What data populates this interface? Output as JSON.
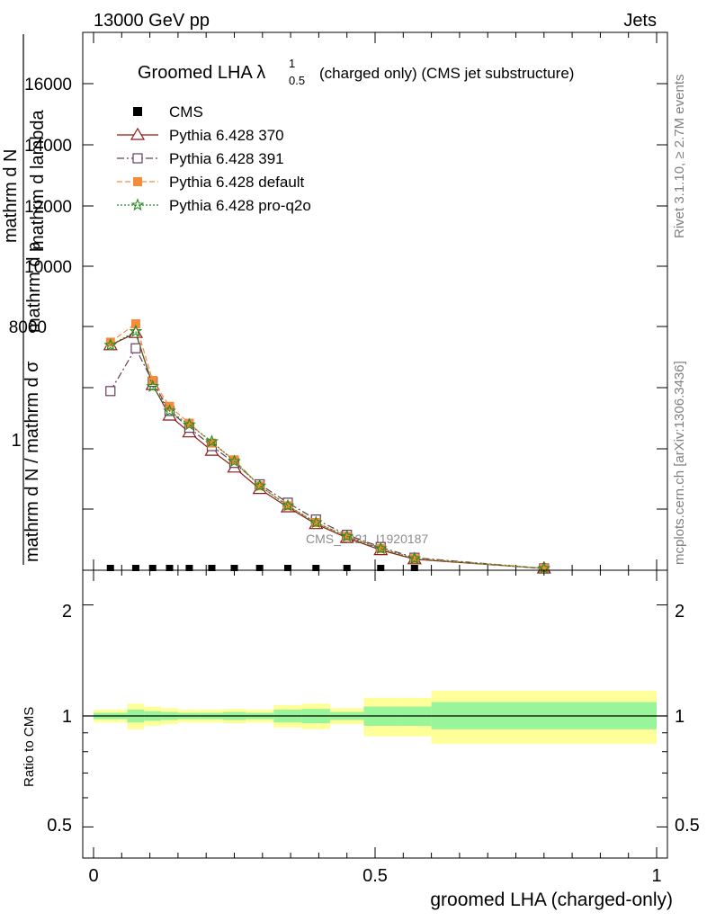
{
  "header": {
    "left": "13000 GeV pp",
    "right": "Jets"
  },
  "side_labels": {
    "rivet": "Rivet 3.1.10, ≥ 2.7M events",
    "mcplots": "mcplots.cern.ch [arXiv:1306.3436]"
  },
  "watermark": "CMS_2021_I1920187",
  "chart_data": [
    {
      "type": "line",
      "title": "Groomed LHA λ",
      "title_sup": "1",
      "title_sub": "0.5",
      "title_rest": "(charged only) (CMS jet substructure)",
      "ylabel_lines": [
        "mathrm d N / mathrm d σ",
        "mathrm d p",
        "mathrm d lambda",
        "mathrm d N"
      ],
      "ylabel_fraction_one": "1",
      "xlabel": "",
      "y_ticks_upper": [
        "16000",
        "14000",
        "12000",
        "10000",
        "8000"
      ],
      "legend_placement": "top-left",
      "x": [
        0.03,
        0.075,
        0.105,
        0.135,
        0.17,
        0.21,
        0.25,
        0.295,
        0.345,
        0.395,
        0.45,
        0.51,
        0.57,
        0.8
      ],
      "series": [
        {
          "name": "CMS",
          "color": "#000000",
          "marker": "square-filled",
          "values": [
            0,
            0,
            0,
            0,
            0,
            0,
            0,
            0,
            0,
            0,
            0,
            0,
            0,
            0
          ]
        },
        {
          "name": "Pythia 6.428 370",
          "color": "#8b1a1a",
          "marker": "triangle-open",
          "dash": "",
          "values": [
            7.3,
            7.7,
            6.0,
            5.0,
            4.45,
            3.85,
            3.3,
            2.6,
            2.0,
            1.45,
            1.0,
            0.6,
            0.3,
            0.0
          ]
        },
        {
          "name": "Pythia 6.428 391",
          "color": "#6b3a5a",
          "marker": "square-open",
          "dash": "8,3,2,3",
          "values": [
            5.8,
            7.2,
            6.1,
            5.15,
            4.6,
            4.0,
            3.45,
            2.75,
            2.15,
            1.6,
            1.1,
            0.7,
            0.35,
            0.0
          ]
        },
        {
          "name": "Pythia 6.428 default",
          "color": "#f58c3c",
          "marker": "square-filled",
          "dash": "6,3",
          "values": [
            7.4,
            8.0,
            6.15,
            5.3,
            4.75,
            4.1,
            3.55,
            2.7,
            2.05,
            1.5,
            1.05,
            0.65,
            0.32,
            0.0
          ]
        },
        {
          "name": "Pythia 6.428 pro-q2o",
          "color": "#1e8c1e",
          "marker": "star",
          "dash": "2,2",
          "values": [
            7.3,
            7.75,
            5.95,
            5.15,
            4.7,
            4.15,
            3.5,
            2.7,
            2.05,
            1.5,
            1.05,
            0.65,
            0.32,
            0.0
          ]
        }
      ]
    },
    {
      "type": "area",
      "ylabel": "Ratio to CMS",
      "xlabel": "groomed LHA (charged-only)",
      "xlim": [
        0,
        1
      ],
      "ylim": [
        0.4,
        2.4
      ],
      "x_ticks": [
        "0",
        "0.5",
        "1"
      ],
      "y_ticks": [
        "0.5",
        "1",
        "2"
      ],
      "y_ticks_right": [
        "0.5",
        "1",
        "2"
      ],
      "bands": [
        {
          "x0": 0.0,
          "x1": 0.06,
          "yellow": [
            0.96,
            1.04
          ],
          "green": [
            0.98,
            1.02
          ]
        },
        {
          "x0": 0.06,
          "x1": 0.09,
          "yellow": [
            0.92,
            1.08
          ],
          "green": [
            0.96,
            1.04
          ]
        },
        {
          "x0": 0.09,
          "x1": 0.12,
          "yellow": [
            0.94,
            1.06
          ],
          "green": [
            0.97,
            1.03
          ]
        },
        {
          "x0": 0.12,
          "x1": 0.15,
          "yellow": [
            0.95,
            1.05
          ],
          "green": [
            0.975,
            1.025
          ]
        },
        {
          "x0": 0.15,
          "x1": 0.19,
          "yellow": [
            0.96,
            1.04
          ],
          "green": [
            0.98,
            1.02
          ]
        },
        {
          "x0": 0.19,
          "x1": 0.23,
          "yellow": [
            0.96,
            1.04
          ],
          "green": [
            0.98,
            1.02
          ]
        },
        {
          "x0": 0.23,
          "x1": 0.27,
          "yellow": [
            0.955,
            1.045
          ],
          "green": [
            0.975,
            1.025
          ]
        },
        {
          "x0": 0.27,
          "x1": 0.32,
          "yellow": [
            0.96,
            1.04
          ],
          "green": [
            0.98,
            1.02
          ]
        },
        {
          "x0": 0.32,
          "x1": 0.37,
          "yellow": [
            0.93,
            1.07
          ],
          "green": [
            0.96,
            1.04
          ]
        },
        {
          "x0": 0.37,
          "x1": 0.42,
          "yellow": [
            0.92,
            1.08
          ],
          "green": [
            0.955,
            1.045
          ]
        },
        {
          "x0": 0.42,
          "x1": 0.48,
          "yellow": [
            0.95,
            1.05
          ],
          "green": [
            0.975,
            1.025
          ]
        },
        {
          "x0": 0.48,
          "x1": 0.54,
          "yellow": [
            0.88,
            1.12
          ],
          "green": [
            0.94,
            1.06
          ]
        },
        {
          "x0": 0.54,
          "x1": 0.6,
          "yellow": [
            0.88,
            1.12
          ],
          "green": [
            0.94,
            1.06
          ]
        },
        {
          "x0": 0.6,
          "x1": 1.0,
          "yellow": [
            0.84,
            1.17
          ],
          "green": [
            0.92,
            1.09
          ]
        }
      ]
    }
  ]
}
